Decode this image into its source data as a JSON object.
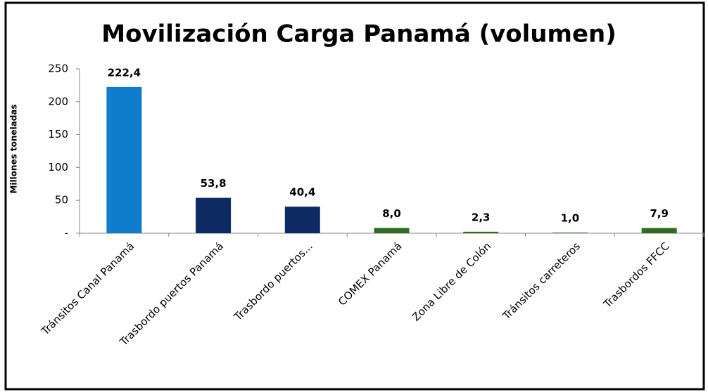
{
  "chart_data": {
    "type": "bar",
    "title": "Movilización Carga Panamá (volumen)",
    "y_label": "Millones toneladas",
    "categories": [
      "Tránsitos Canal Panamá",
      "Trasbordo puertos Panamá",
      "Trasbordo puertos...",
      "COMEX Panamá",
      "Zona Libre de Colón",
      "Tránsitos carreteros",
      "Trasbordos FFCC"
    ],
    "values": [
      222.4,
      53.8,
      40.4,
      8.0,
      2.3,
      1.0,
      7.9
    ],
    "value_labels": [
      "222,4",
      "53,8",
      "40,4",
      "8,0",
      "2,3",
      "1,0",
      "7,9"
    ],
    "colors": [
      "#0f7ccc",
      "#0d2a63",
      "#0d2a63",
      "#2e6b1f",
      "#2e6b1f",
      "#2e6b1f",
      "#2e6b1f"
    ],
    "ylim": [
      0,
      250
    ],
    "yticks": [
      {
        "value": 0,
        "label": "-"
      },
      50,
      100,
      150,
      200,
      250
    ],
    "grid": false
  }
}
